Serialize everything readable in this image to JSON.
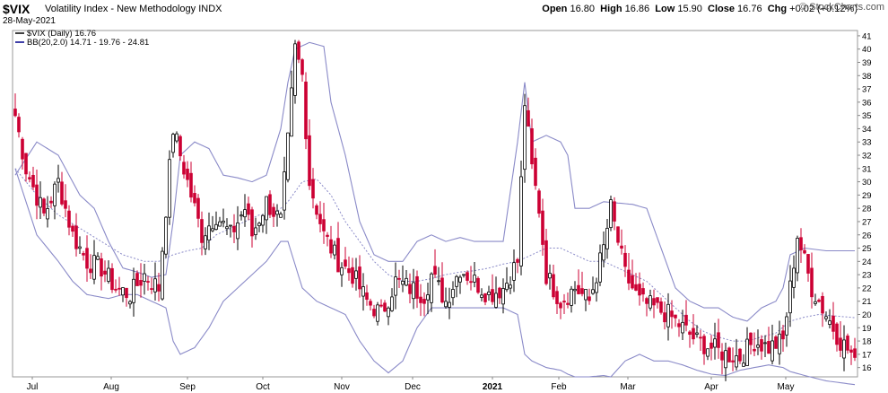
{
  "header": {
    "symbol": "$VIX",
    "description": "Volatility Index - New Methodology INDX",
    "date": "28-May-2021",
    "open_label": "Open",
    "open": "16.80",
    "high_label": "High",
    "high": "16.86",
    "low_label": "Low",
    "low": "15.90",
    "close_label": "Close",
    "close": "16.76",
    "chg_label": "Chg",
    "chg": "+0.02 (+0.12%)",
    "brand": "© StockCharts.com"
  },
  "chart_data": {
    "type": "candlestick",
    "legend": [
      {
        "label": "$VIX (Daily) 16.76",
        "color": "#000000"
      },
      {
        "label": "BB(20,2.0) 14.71 - 19.76 - 24.81",
        "color": "#00008b"
      }
    ],
    "x_ticks": [
      "Jul",
      "Aug",
      "Sep",
      "Oct",
      "Nov",
      "Dec",
      "2021",
      "Feb",
      "Mar",
      "Apr",
      "May"
    ],
    "y_ticks": [
      16,
      17,
      18,
      19,
      20,
      21,
      22,
      23,
      24,
      25,
      26,
      27,
      28,
      29,
      30,
      31,
      32,
      33,
      34,
      35,
      36,
      37,
      38,
      39,
      40,
      41
    ],
    "ylim": [
      15.3,
      41.4
    ],
    "up_color": "#000000",
    "down_color": "#cc0033",
    "band_color": "#8a8ac8",
    "close_anchors": [
      [
        0,
        35
      ],
      [
        3,
        31
      ],
      [
        8,
        27.5
      ],
      [
        12,
        30
      ],
      [
        16,
        26
      ],
      [
        20,
        24
      ],
      [
        24,
        23.5
      ],
      [
        28,
        22
      ],
      [
        32,
        21.5
      ],
      [
        36,
        23
      ],
      [
        40,
        22
      ],
      [
        44,
        34
      ],
      [
        48,
        30
      ],
      [
        52,
        26
      ],
      [
        56,
        27.5
      ],
      [
        60,
        26
      ],
      [
        64,
        28
      ],
      [
        66,
        26
      ],
      [
        70,
        28.5
      ],
      [
        74,
        27
      ],
      [
        76,
        33
      ],
      [
        78,
        40
      ],
      [
        80,
        38
      ],
      [
        82,
        30
      ],
      [
        86,
        26
      ],
      [
        90,
        24
      ],
      [
        94,
        23
      ],
      [
        98,
        21
      ],
      [
        102,
        20
      ],
      [
        106,
        22.5
      ],
      [
        110,
        22
      ],
      [
        114,
        21.5
      ],
      [
        116,
        23
      ],
      [
        120,
        21
      ],
      [
        124,
        23.5
      ],
      [
        128,
        22.5
      ],
      [
        132,
        21.5
      ],
      [
        136,
        22
      ],
      [
        140,
        24
      ],
      [
        142,
        36
      ],
      [
        144,
        31
      ],
      [
        146,
        28
      ],
      [
        148,
        23
      ],
      [
        152,
        21
      ],
      [
        156,
        22
      ],
      [
        160,
        21
      ],
      [
        164,
        25
      ],
      [
        166,
        28
      ],
      [
        170,
        23
      ],
      [
        174,
        21
      ],
      [
        178,
        20.5
      ],
      [
        182,
        20
      ],
      [
        186,
        19
      ],
      [
        190,
        18
      ],
      [
        194,
        17.5
      ],
      [
        198,
        17
      ],
      [
        202,
        16.8
      ],
      [
        206,
        18
      ],
      [
        210,
        17.5
      ],
      [
        214,
        18
      ],
      [
        216,
        22
      ],
      [
        218,
        26
      ],
      [
        220,
        24
      ],
      [
        222,
        22
      ],
      [
        226,
        20
      ],
      [
        230,
        18
      ],
      [
        234,
        16.76
      ]
    ],
    "bb_upper_anchors": [
      [
        0,
        30.5
      ],
      [
        6,
        33
      ],
      [
        12,
        32
      ],
      [
        18,
        29
      ],
      [
        22,
        28
      ],
      [
        26,
        25.5
      ],
      [
        30,
        23.5
      ],
      [
        34,
        23.2
      ],
      [
        38,
        22.8
      ],
      [
        42,
        23
      ],
      [
        44,
        27
      ],
      [
        46,
        32
      ],
      [
        50,
        33
      ],
      [
        54,
        32.5
      ],
      [
        58,
        30.5
      ],
      [
        62,
        30.3
      ],
      [
        66,
        30
      ],
      [
        70,
        30.5
      ],
      [
        74,
        34
      ],
      [
        76,
        37.5
      ],
      [
        78,
        40
      ],
      [
        82,
        40.5
      ],
      [
        86,
        40.2
      ],
      [
        88,
        36
      ],
      [
        92,
        32
      ],
      [
        96,
        27
      ],
      [
        100,
        24.5
      ],
      [
        104,
        24
      ],
      [
        108,
        24
      ],
      [
        112,
        25.5
      ],
      [
        116,
        26
      ],
      [
        120,
        25.5
      ],
      [
        124,
        25.8
      ],
      [
        128,
        25.5
      ],
      [
        132,
        25.5
      ],
      [
        136,
        25.5
      ],
      [
        140,
        33
      ],
      [
        142,
        37.5
      ],
      [
        144,
        33
      ],
      [
        148,
        33.5
      ],
      [
        152,
        33
      ],
      [
        154,
        32
      ],
      [
        156,
        28
      ],
      [
        160,
        28
      ],
      [
        164,
        28.5
      ],
      [
        168,
        28.4
      ],
      [
        172,
        28.3
      ],
      [
        176,
        28
      ],
      [
        180,
        25
      ],
      [
        184,
        22
      ],
      [
        188,
        21
      ],
      [
        192,
        20.5
      ],
      [
        196,
        20.5
      ],
      [
        200,
        19.8
      ],
      [
        204,
        19.5
      ],
      [
        208,
        20.5
      ],
      [
        212,
        21
      ],
      [
        214,
        22
      ],
      [
        216,
        24.5
      ],
      [
        220,
        25
      ],
      [
        226,
        24.8
      ],
      [
        234,
        24.8
      ]
    ],
    "bb_middle_anchors": [
      [
        0,
        31
      ],
      [
        6,
        29
      ],
      [
        12,
        27.5
      ],
      [
        18,
        26.5
      ],
      [
        24,
        25.5
      ],
      [
        30,
        24.5
      ],
      [
        36,
        24
      ],
      [
        40,
        24
      ],
      [
        44,
        24.5
      ],
      [
        48,
        24.8
      ],
      [
        52,
        25
      ],
      [
        56,
        26
      ],
      [
        60,
        26.5
      ],
      [
        64,
        27
      ],
      [
        68,
        27.5
      ],
      [
        72,
        27.5
      ],
      [
        76,
        28.5
      ],
      [
        80,
        30
      ],
      [
        84,
        30.2
      ],
      [
        88,
        29
      ],
      [
        92,
        27
      ],
      [
        96,
        25.5
      ],
      [
        100,
        24
      ],
      [
        104,
        23
      ],
      [
        108,
        22.5
      ],
      [
        112,
        22.5
      ],
      [
        116,
        22.7
      ],
      [
        120,
        23
      ],
      [
        124,
        23.2
      ],
      [
        128,
        23.3
      ],
      [
        132,
        23.5
      ],
      [
        136,
        23.8
      ],
      [
        140,
        24
      ],
      [
        144,
        24.5
      ],
      [
        148,
        25
      ],
      [
        152,
        25
      ],
      [
        156,
        24.5
      ],
      [
        160,
        24
      ],
      [
        164,
        24
      ],
      [
        168,
        23.5
      ],
      [
        172,
        23
      ],
      [
        176,
        22.5
      ],
      [
        180,
        21.5
      ],
      [
        184,
        20.5
      ],
      [
        188,
        19.5
      ],
      [
        192,
        18.7
      ],
      [
        196,
        18.3
      ],
      [
        200,
        18
      ],
      [
        204,
        18
      ],
      [
        208,
        18.3
      ],
      [
        212,
        18.6
      ],
      [
        216,
        19.5
      ],
      [
        220,
        19.8
      ],
      [
        224,
        20
      ],
      [
        228,
        19.9
      ],
      [
        234,
        19.76
      ]
    ],
    "bb_lower_anchors": [
      [
        0,
        31
      ],
      [
        6,
        26
      ],
      [
        12,
        24
      ],
      [
        16,
        22.5
      ],
      [
        20,
        21.5
      ],
      [
        26,
        21.2
      ],
      [
        30,
        21.5
      ],
      [
        34,
        21.5
      ],
      [
        38,
        21
      ],
      [
        42,
        20.5
      ],
      [
        44,
        18
      ],
      [
        46,
        17
      ],
      [
        50,
        17.5
      ],
      [
        54,
        19
      ],
      [
        58,
        21
      ],
      [
        62,
        22
      ],
      [
        66,
        23
      ],
      [
        70,
        24
      ],
      [
        74,
        25.5
      ],
      [
        76,
        25.5
      ],
      [
        80,
        22
      ],
      [
        84,
        21
      ],
      [
        88,
        20.5
      ],
      [
        92,
        20
      ],
      [
        96,
        18
      ],
      [
        100,
        16.5
      ],
      [
        104,
        15.6
      ],
      [
        108,
        16.5
      ],
      [
        112,
        19
      ],
      [
        116,
        20.5
      ],
      [
        120,
        20.5
      ],
      [
        124,
        20.5
      ],
      [
        128,
        20.5
      ],
      [
        132,
        20.5
      ],
      [
        136,
        20.5
      ],
      [
        140,
        20
      ],
      [
        142,
        17
      ],
      [
        144,
        16.5
      ],
      [
        148,
        16
      ],
      [
        152,
        15.8
      ],
      [
        154,
        15.5
      ],
      [
        156,
        15.3
      ],
      [
        160,
        15.3
      ],
      [
        164,
        15.4
      ],
      [
        166,
        15.3
      ],
      [
        170,
        16.5
      ],
      [
        174,
        17
      ],
      [
        178,
        16.5
      ],
      [
        182,
        16.5
      ],
      [
        186,
        16.2
      ],
      [
        190,
        15.8
      ],
      [
        194,
        15.5
      ],
      [
        198,
        15.4
      ],
      [
        202,
        15.8
      ],
      [
        206,
        16
      ],
      [
        210,
        16.2
      ],
      [
        214,
        16
      ],
      [
        216,
        15.7
      ],
      [
        220,
        15.4
      ],
      [
        226,
        15
      ],
      [
        234,
        14.71
      ]
    ]
  }
}
